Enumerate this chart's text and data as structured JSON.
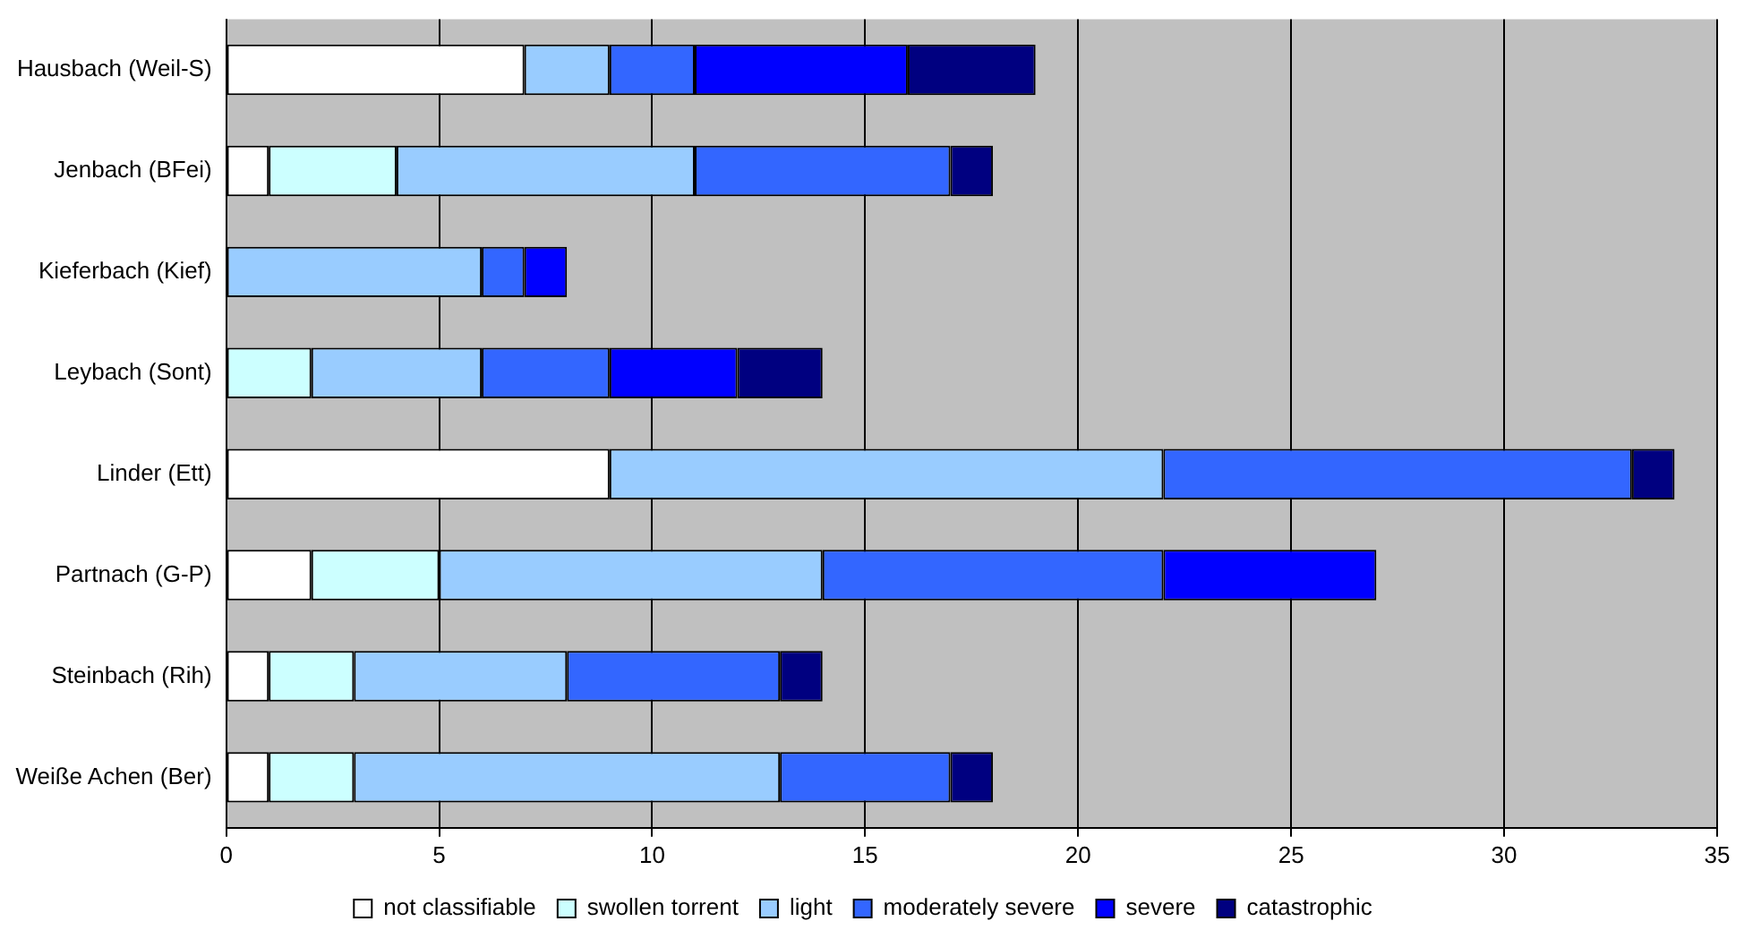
{
  "chart_data": {
    "type": "bar",
    "orientation": "horizontal",
    "stacked": true,
    "grid": "x",
    "legend": "bottom",
    "categories": [
      "Hausbach (Weil-S)",
      "Jenbach (BFei)",
      "Kieferbach (Kief)",
      "Leybach (Sont)",
      "Linder (Ett)",
      "Partnach (G-P)",
      "Steinbach (Rih)",
      "Weiße Achen (Ber)"
    ],
    "xlim": [
      0,
      35
    ],
    "xticks": [
      0,
      5,
      10,
      15,
      20,
      25,
      30,
      35
    ],
    "series": [
      {
        "name": "not classifiable",
        "color": "#ffffff",
        "values": [
          7,
          1,
          0,
          0,
          9,
          2,
          1,
          1
        ]
      },
      {
        "name": "swollen torrent",
        "color": "#ccffff",
        "values": [
          0,
          3,
          0,
          2,
          0,
          3,
          2,
          2
        ]
      },
      {
        "name": "light",
        "color": "#99ccff",
        "values": [
          2,
          7,
          6,
          4,
          13,
          9,
          5,
          10
        ]
      },
      {
        "name": "moderately severe",
        "color": "#3366ff",
        "values": [
          2,
          6,
          1,
          3,
          11,
          8,
          5,
          4
        ]
      },
      {
        "name": "severe",
        "color": "#0000ff",
        "values": [
          5,
          0,
          1,
          3,
          0,
          5,
          0,
          0
        ]
      },
      {
        "name": "catastrophic",
        "color": "#000080",
        "values": [
          3,
          1,
          0,
          2,
          1,
          0,
          1,
          1
        ]
      }
    ]
  }
}
